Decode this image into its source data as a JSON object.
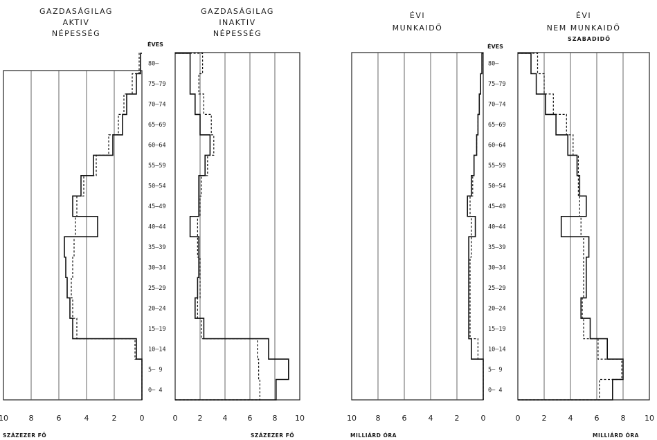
{
  "age_headers": {
    "left": "ÉVES",
    "right": "ÉVES"
  },
  "units": {
    "left_bottom": "SZÁZEZER  FŐ",
    "center_bottom": "SZÁZEZER  FŐ",
    "right_left_bottom": "MILLIÁRD  ÓRA",
    "right_right_bottom": "MILLIÁRD  ÓRA"
  },
  "chart_data": [
    {
      "type": "bar",
      "orientation": "horizontal-step",
      "title": [
        "GAZDASÁGILAG",
        "AKTIV",
        "NÉPESSÉG"
      ],
      "direction": "leftward",
      "xlim": [
        10,
        0
      ],
      "xticks": [
        "10",
        "8",
        "6",
        "4",
        "2",
        "0"
      ],
      "xlabel": "SZÁZEZER FŐ",
      "categories": [
        "0– 4",
        "5– 9",
        "10–14",
        "15–19",
        "20–24",
        "25–29",
        "30–34",
        "35–39",
        "40–44",
        "45–49",
        "50–54",
        "55–59",
        "60–64",
        "65–69",
        "70–74",
        "75–79",
        "80–"
      ],
      "series": [
        {
          "style": "solid",
          "values": [
            0,
            0,
            0.4,
            5.0,
            5.2,
            5.4,
            5.5,
            5.6,
            3.2,
            5.0,
            4.4,
            3.5,
            2.1,
            1.4,
            1.1,
            0.4,
            0.1
          ]
        },
        {
          "style": "dashed",
          "values": [
            0,
            0,
            0.5,
            4.7,
            5.0,
            5.1,
            5.0,
            4.9,
            4.8,
            4.7,
            4.2,
            3.3,
            2.4,
            1.7,
            1.3,
            0.7,
            0.2
          ]
        }
      ]
    },
    {
      "type": "bar",
      "orientation": "horizontal-step",
      "title": [
        "GAZDASÁGILAG",
        "INAKTIV",
        "NÉPESSÉG"
      ],
      "direction": "rightward",
      "xlim": [
        0,
        10
      ],
      "xticks": [
        "0",
        "2",
        "4",
        "6",
        "8",
        "10"
      ],
      "xlabel": "SZÁZEZER FŐ",
      "categories": [
        "0– 4",
        "5– 9",
        "10–14",
        "15–19",
        "20–24",
        "25–29",
        "30–34",
        "35–39",
        "40–44",
        "45–49",
        "50–54",
        "55–59",
        "60–64",
        "65–69",
        "70–74",
        "75–79",
        "80–"
      ],
      "series": [
        {
          "style": "solid",
          "values": [
            8.1,
            9.1,
            7.5,
            2.3,
            1.6,
            1.8,
            1.9,
            1.9,
            1.2,
            1.9,
            1.9,
            2.4,
            2.8,
            2.0,
            1.6,
            1.2,
            1.2
          ]
        },
        {
          "style": "dashed",
          "values": [
            6.8,
            6.7,
            6.6,
            2.1,
            1.8,
            2.0,
            2.0,
            1.8,
            1.8,
            2.0,
            2.1,
            2.6,
            3.1,
            2.9,
            2.3,
            1.9,
            2.2
          ]
        }
      ]
    },
    {
      "type": "bar",
      "orientation": "horizontal-step",
      "title": [
        "ÉVI",
        "MUNKAIDŐ"
      ],
      "direction": "leftward",
      "xlim": [
        10,
        0
      ],
      "xticks": [
        "10",
        "8",
        "6",
        "4",
        "2",
        "0"
      ],
      "xlabel": "MILLIÁRD ÓRA",
      "categories": [
        "0– 4",
        "5– 9",
        "10–14",
        "15–19",
        "20–24",
        "25–29",
        "30–34",
        "35–39",
        "40–44",
        "45–49",
        "50–54",
        "55–59",
        "60–64",
        "65–69",
        "70–74",
        "75–79",
        "80–"
      ],
      "series": [
        {
          "style": "solid",
          "values": [
            0,
            0,
            0.9,
            1.1,
            1.1,
            1.1,
            1.1,
            1.1,
            0.6,
            1.2,
            0.9,
            0.7,
            0.5,
            0.4,
            0.3,
            0.2,
            0.1
          ]
        },
        {
          "style": "dashed",
          "values": [
            0,
            0,
            0.4,
            1.0,
            1.0,
            1.0,
            1.0,
            0.9,
            0.9,
            1.0,
            0.8,
            0.7,
            0.5,
            0.4,
            0.3,
            0.2,
            0.1
          ]
        }
      ]
    },
    {
      "type": "bar",
      "orientation": "horizontal-step",
      "title": [
        "ÉVI",
        "NEM  MUNKAIDŐ"
      ],
      "subtitle": "SZABADIDŐ",
      "direction": "rightward",
      "xlim": [
        0,
        10
      ],
      "xticks": [
        "0",
        "2",
        "4",
        "6",
        "8",
        "10"
      ],
      "xlabel": "MILLIÁRD ÓRA",
      "categories": [
        "0– 4",
        "5– 9",
        "10–14",
        "15–19",
        "20–24",
        "25–29",
        "30–34",
        "35–39",
        "40–44",
        "45–49",
        "50–54",
        "55–59",
        "60–64",
        "65–69",
        "70–74",
        "75–79",
        "80–"
      ],
      "series": [
        {
          "style": "solid",
          "values": [
            7.2,
            8.0,
            6.8,
            5.5,
            4.8,
            5.2,
            5.2,
            5.4,
            3.3,
            5.2,
            4.7,
            4.5,
            3.8,
            2.9,
            2.1,
            1.4,
            1.0
          ]
        },
        {
          "style": "dashed",
          "values": [
            6.2,
            7.9,
            6.1,
            5.0,
            4.9,
            5.0,
            5.0,
            5.0,
            4.8,
            4.7,
            4.6,
            4.6,
            4.2,
            3.7,
            2.7,
            2.0,
            1.5
          ]
        }
      ]
    }
  ]
}
